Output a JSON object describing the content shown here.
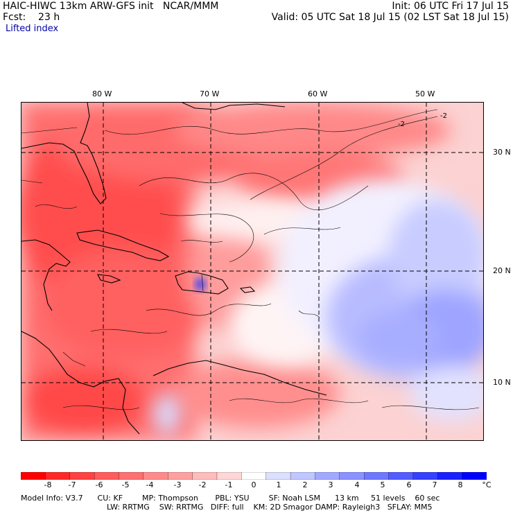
{
  "header": {
    "title": "HAIC-HIWC 13km ARW-GFS init   NCAR/MMM",
    "fcst": "Fcst:    23 h",
    "init": "Init: 06 UTC Fri 17 Jul 15",
    "valid": "Valid: 05 UTC Sat 18 Jul 15 (02 LST Sat 18 Jul 15)",
    "variable": "Lifted index"
  },
  "axes": {
    "lon_labels": [
      "80 W",
      "70 W",
      "60 W",
      "50 W"
    ],
    "lat_labels": [
      "30 N",
      "20 N",
      "10 N"
    ]
  },
  "contour_labels": [
    "-2",
    "-2"
  ],
  "colorbar": {
    "ticks": [
      "-8",
      "-7",
      "-6",
      "-5",
      "-4",
      "-3",
      "-2",
      "-1",
      "0",
      "1",
      "2",
      "3",
      "4",
      "5",
      "6",
      "7",
      "8"
    ],
    "unit": "°C",
    "colors": [
      "#ff0000",
      "#ff2828",
      "#ff4242",
      "#ff5c5c",
      "#ff7070",
      "#ff8a8a",
      "#ffa0a0",
      "#ffbcbc",
      "#ffd6d6",
      "#ffffff",
      "#dce0ff",
      "#c0c6ff",
      "#a2aaff",
      "#8a92ff",
      "#6e78ff",
      "#525cff",
      "#3640ff",
      "#1a22ff",
      "#0000ff"
    ]
  },
  "footer": {
    "line1": "Model Info: V3.7      CU: KF        MP: Thompson       PBL: YSU        SF: Noah LSM      13 km     51 levels    60 sec",
    "line2": "LW: RRTMG    SW: RRTMG   DIFF: full    KM: 2D Smagor DAMP: Rayleigh3   SFLAY: MM5"
  }
}
